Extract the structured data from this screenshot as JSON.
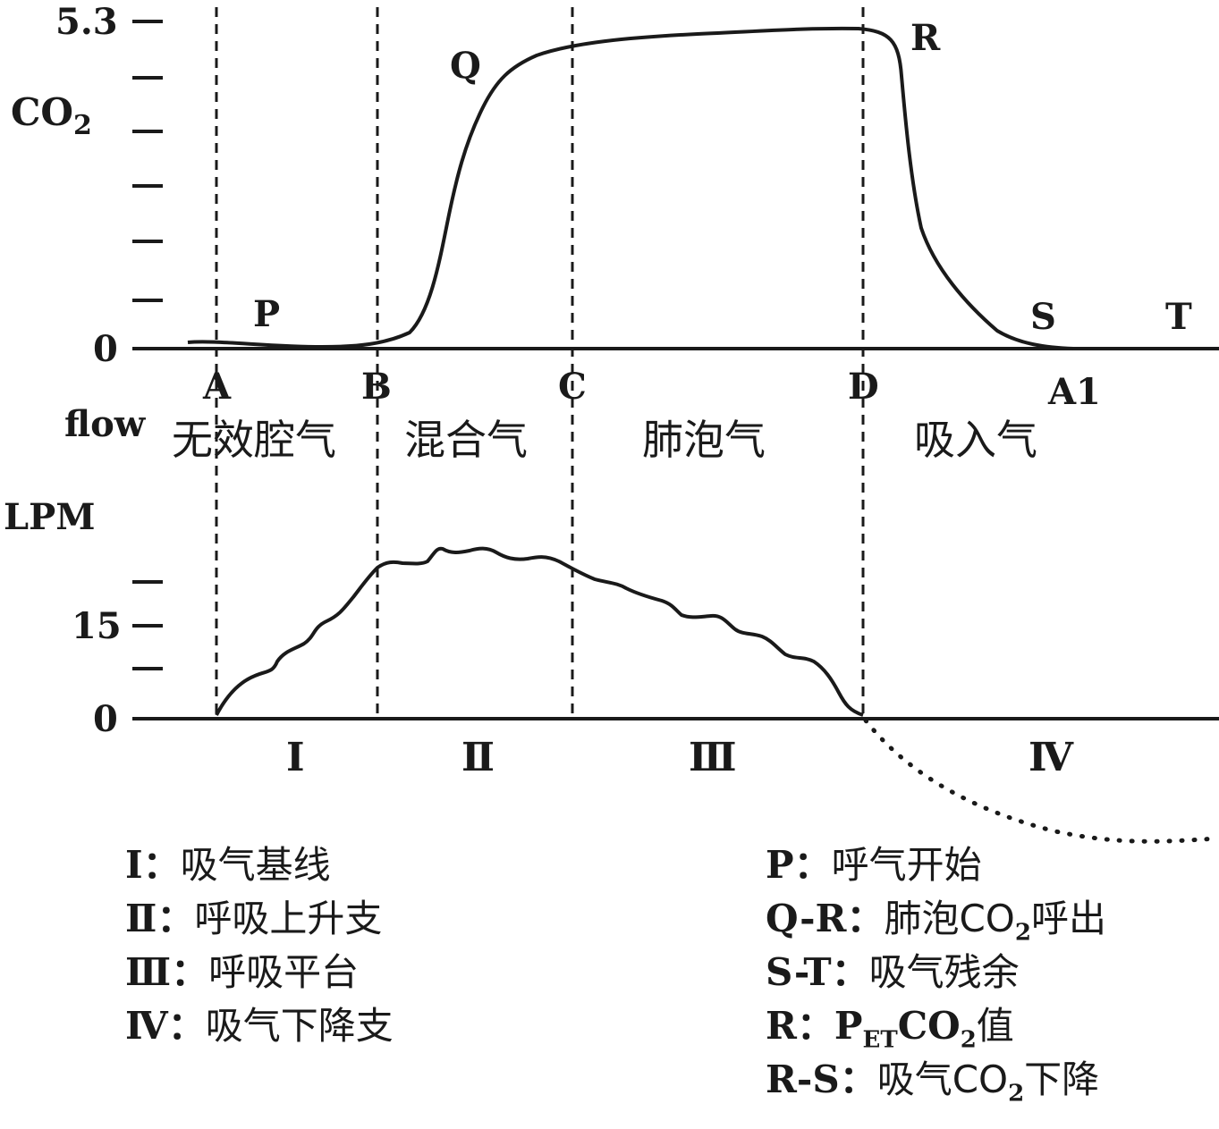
{
  "top_plot": {
    "y_axis_label": "CO",
    "y_axis_label_sub": "2",
    "y_max_label": "5.3",
    "y_zero_label": "0",
    "curve_points": [
      "P",
      "Q",
      "R",
      "S",
      "T"
    ],
    "phase_boundaries": [
      "A",
      "B",
      "C",
      "D",
      "A1"
    ],
    "zones": [
      "无效腔气",
      "混合气",
      "肺泡气",
      "吸入气"
    ]
  },
  "bottom_plot": {
    "y_axis_label_line1": "flow",
    "y_axis_label_line2": "LPM",
    "y_mid_label": "15",
    "y_zero_label": "0",
    "phases": [
      "Ⅰ",
      "Ⅱ",
      "Ⅲ",
      "Ⅳ"
    ]
  },
  "legend_left": [
    {
      "key": "Ⅰ",
      "text": "吸气基线"
    },
    {
      "key": "Ⅱ",
      "text": "呼吸上升支"
    },
    {
      "key": "Ⅲ",
      "text": "呼吸平台"
    },
    {
      "key": "Ⅳ",
      "text": "吸气下降支"
    }
  ],
  "legend_right": [
    {
      "key": "P",
      "text": "呼气开始"
    },
    {
      "key": "Q-R",
      "text_before": "肺泡CO",
      "sub": "2",
      "text_after": "呼出"
    },
    {
      "key": "S-T",
      "text": "吸气残余"
    },
    {
      "key": "R",
      "text_p": "P",
      "sub1": "ET",
      "text_co": "CO",
      "sub2": "2",
      "text_after": "值"
    },
    {
      "key": "R-S",
      "text_before": "吸气CO",
      "sub": "2",
      "text_after": "下降"
    }
  ],
  "colors": {
    "line": "#1a1a1a",
    "background": "#ffffff"
  }
}
